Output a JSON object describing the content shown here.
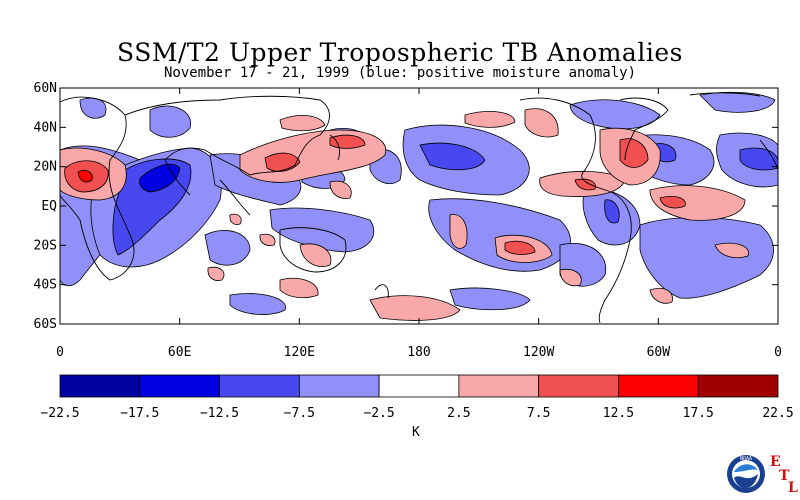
{
  "title": "SSM/T2 Upper Tropospheric TB Anomalies",
  "subtitle": "November 17 - 21, 1999 (blue: positive moisture anomaly)",
  "chart_data": {
    "type": "heatmap",
    "title": "SSM/T2 Upper Tropospheric TB Anomalies",
    "subtitle": "November 17 - 21, 1999 (blue: positive moisture anomaly)",
    "x_ticks": [
      "0",
      "60E",
      "120E",
      "180",
      "120W",
      "60W",
      "0"
    ],
    "x_values": [
      0,
      60,
      120,
      180,
      240,
      300,
      360
    ],
    "y_ticks": [
      "60N",
      "40N",
      "20N",
      "EQ",
      "20S",
      "40S",
      "60S"
    ],
    "y_values": [
      60,
      40,
      20,
      0,
      -20,
      -40,
      -60
    ],
    "xlim": [
      0,
      360
    ],
    "ylim": [
      -60,
      60
    ],
    "colorbar": {
      "unit": "K",
      "ticks": [
        "-22.5",
        "-17.5",
        "-12.5",
        "-7.5",
        "-2.5",
        "2.5",
        "7.5",
        "12.5",
        "17.5",
        "22.5"
      ],
      "bins": [
        {
          "min": -22.5,
          "max": -17.5,
          "color": "#0000a0"
        },
        {
          "min": -17.5,
          "max": -12.5,
          "color": "#0000e0"
        },
        {
          "min": -12.5,
          "max": -7.5,
          "color": "#4848f0"
        },
        {
          "min": -7.5,
          "max": -2.5,
          "color": "#9090f8"
        },
        {
          "min": -2.5,
          "max": 2.5,
          "color": "#ffffff"
        },
        {
          "min": 2.5,
          "max": 7.5,
          "color": "#f8a8a8"
        },
        {
          "min": 7.5,
          "max": 12.5,
          "color": "#f05050"
        },
        {
          "min": 12.5,
          "max": 17.5,
          "color": "#ff0000"
        },
        {
          "min": 17.5,
          "max": 22.5,
          "color": "#a00000"
        }
      ]
    }
  },
  "logo": {
    "icon": "noaa-logo",
    "label": "NOAA"
  },
  "etl": {
    "e": "E",
    "t": "T",
    "l": "L"
  }
}
